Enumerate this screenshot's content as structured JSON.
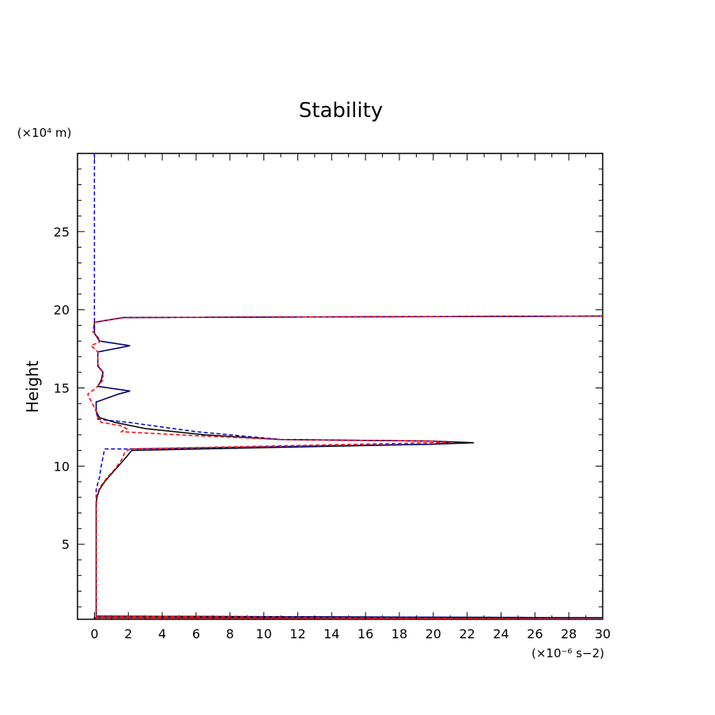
{
  "chart_data": {
    "type": "line",
    "title": "Stability",
    "ylabel": "Height",
    "y_unit_label": "(×10⁴ m)",
    "x_unit_label": "(×10⁻⁶ s−2)",
    "xlim": [
      -1,
      30
    ],
    "ylim": [
      0.2,
      30
    ],
    "xticks": [
      0,
      2,
      4,
      6,
      8,
      10,
      12,
      14,
      16,
      18,
      20,
      22,
      24,
      26,
      28,
      30
    ],
    "yticks": [
      5,
      10,
      15,
      20,
      25
    ],
    "series": [
      {
        "color": "#000000",
        "dash": "solid",
        "points": [
          [
            0,
            0.2
          ],
          [
            0,
            0.3
          ],
          [
            30,
            0.3
          ],
          [
            0.1,
            0.4
          ],
          [
            0.1,
            3
          ],
          [
            0.1,
            6
          ],
          [
            0.1,
            7.5
          ],
          [
            0.15,
            8
          ],
          [
            0.3,
            8.5
          ],
          [
            0.6,
            9
          ],
          [
            1.0,
            9.5
          ],
          [
            1.5,
            10.1
          ],
          [
            1.9,
            10.6
          ],
          [
            2.2,
            11.0
          ],
          [
            20,
            11.4
          ],
          [
            22.4,
            11.5
          ],
          [
            20,
            11.6
          ],
          [
            11,
            11.7
          ],
          [
            6.5,
            12.0
          ],
          [
            3,
            12.4
          ],
          [
            1.2,
            12.8
          ],
          [
            0.3,
            13.1
          ],
          [
            0.1,
            13.5
          ],
          [
            0.1,
            14.1
          ],
          [
            1.4,
            14.6
          ],
          [
            2.1,
            14.8
          ],
          [
            0.2,
            15.1
          ],
          [
            0.4,
            15.5
          ],
          [
            0.5,
            16.0
          ],
          [
            0.2,
            16.4
          ],
          [
            0.2,
            17.3
          ],
          [
            2.1,
            17.7
          ],
          [
            0.3,
            18.0
          ],
          [
            0,
            18.5
          ],
          [
            0,
            19.2
          ],
          [
            1.7,
            19.5
          ],
          [
            30,
            19.6
          ]
        ]
      },
      {
        "color": "#0000cc",
        "dash": "dashed",
        "points": [
          [
            0,
            30
          ],
          [
            0,
            25
          ],
          [
            0,
            19.2
          ],
          [
            1.7,
            19.5
          ],
          [
            30,
            19.6
          ],
          [
            1.7,
            19.5
          ],
          [
            0,
            19.2
          ],
          [
            0,
            18.5
          ],
          [
            0.3,
            18.0
          ],
          [
            2.1,
            17.7
          ],
          [
            0.2,
            17.3
          ],
          [
            0.2,
            16.4
          ],
          [
            0.5,
            16.0
          ],
          [
            0.4,
            15.5
          ],
          [
            0.2,
            15.1
          ],
          [
            2.1,
            14.8
          ],
          [
            1.4,
            14.6
          ],
          [
            0.1,
            14.1
          ],
          [
            0.1,
            13.5
          ],
          [
            0.2,
            13.0
          ],
          [
            2,
            12.8
          ],
          [
            6,
            12.2
          ],
          [
            11,
            11.7
          ],
          [
            20,
            11.6
          ],
          [
            21,
            11.5
          ],
          [
            20,
            11.4
          ],
          [
            2,
            11.1
          ],
          [
            0.6,
            11.1
          ],
          [
            0.4,
            10
          ],
          [
            0.3,
            9.3
          ],
          [
            0.1,
            8.5
          ],
          [
            0.1,
            6
          ],
          [
            0.1,
            3
          ],
          [
            0.1,
            0.4
          ],
          [
            30,
            0.3
          ]
        ]
      },
      {
        "color": "#ff0000",
        "dash": "dashed",
        "points": [
          [
            0.1,
            0.2
          ],
          [
            0.1,
            0.3
          ],
          [
            30,
            0.2
          ],
          [
            0.1,
            0.4
          ],
          [
            0.1,
            6
          ],
          [
            0.1,
            8
          ],
          [
            0.3,
            8.6
          ],
          [
            0.7,
            9.2
          ],
          [
            1.2,
            9.8
          ],
          [
            1.6,
            10.4
          ],
          [
            1.8,
            10.9
          ],
          [
            2.1,
            11.1
          ],
          [
            20,
            11.5
          ],
          [
            21,
            11.5
          ],
          [
            20,
            11.6
          ],
          [
            11,
            11.7
          ],
          [
            5,
            12.0
          ],
          [
            1.6,
            12.2
          ],
          [
            1.9,
            12.4
          ],
          [
            1.5,
            12.6
          ],
          [
            0.4,
            12.8
          ],
          [
            0.2,
            13.1
          ],
          [
            0.1,
            13.5
          ],
          [
            -0.4,
            14.6
          ],
          [
            0.1,
            15.0
          ],
          [
            0.5,
            15.5
          ],
          [
            0.5,
            16.0
          ],
          [
            0.2,
            16.5
          ],
          [
            0.2,
            17.3
          ],
          [
            -0.2,
            17.7
          ],
          [
            0.4,
            18.0
          ],
          [
            -0.1,
            18.6
          ],
          [
            0,
            19.2
          ],
          [
            1.7,
            19.5
          ],
          [
            30,
            19.6
          ]
        ]
      }
    ]
  }
}
